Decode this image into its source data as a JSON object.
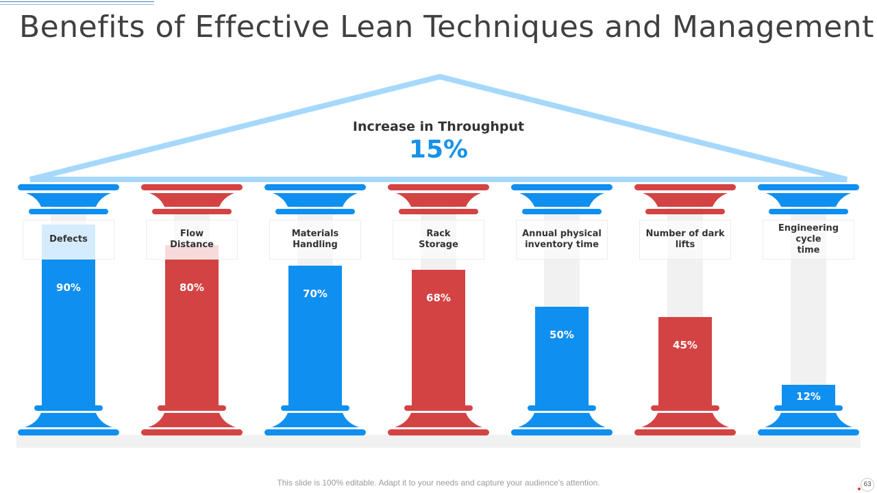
{
  "slide": {
    "title": "Benefits of Effective Lean Techniques and Management",
    "footer": "This slide is 100% editable. Adapt it to your needs and capture your audience's attention.",
    "page_number": "63"
  },
  "roof": {
    "label": "Increase  in Throughput",
    "value": "15%"
  },
  "colors": {
    "blue": "#0f8ff0",
    "red": "#d44343",
    "light_blue": "#9fd4fb",
    "light_red": "#eeb0b0",
    "roof": "#a6d8fb",
    "track": "#f1f1f1",
    "base": "#f1f1f1"
  },
  "chart_data": {
    "type": "bar",
    "title": "Benefits of Effective Lean Techniques and Management",
    "headline": {
      "label": "Increase  in Throughput",
      "value": 15,
      "unit": "%"
    },
    "ylim": [
      0,
      100
    ],
    "categories": [
      "Defects",
      "Flow Distance",
      "Materials Handling",
      "Rack Storage",
      "Annual physical inventory time",
      "Number of dark lifts",
      "Engineering cycle time"
    ],
    "values": [
      90,
      80,
      70,
      68,
      50,
      45,
      12
    ],
    "value_labels": [
      "90%",
      "80%",
      "70%",
      "68%",
      "50%",
      "45%",
      "12%"
    ],
    "bar_colors": [
      "blue",
      "red",
      "blue",
      "red",
      "blue",
      "red",
      "blue"
    ]
  },
  "pillars": [
    {
      "label": "Defects",
      "value_label": "90%"
    },
    {
      "label": "Flow\nDistance",
      "value_label": "80%"
    },
    {
      "label": "Materials Handling",
      "value_label": "70%"
    },
    {
      "label": "Rack\nStorage",
      "value_label": "68%"
    },
    {
      "label": "Annual  physical\ninventory time",
      "value_label": "50%"
    },
    {
      "label": "Number of dark\nlifts",
      "value_label": "45%"
    },
    {
      "label": "Engineering cycle\ntime",
      "value_label": "12%"
    }
  ]
}
